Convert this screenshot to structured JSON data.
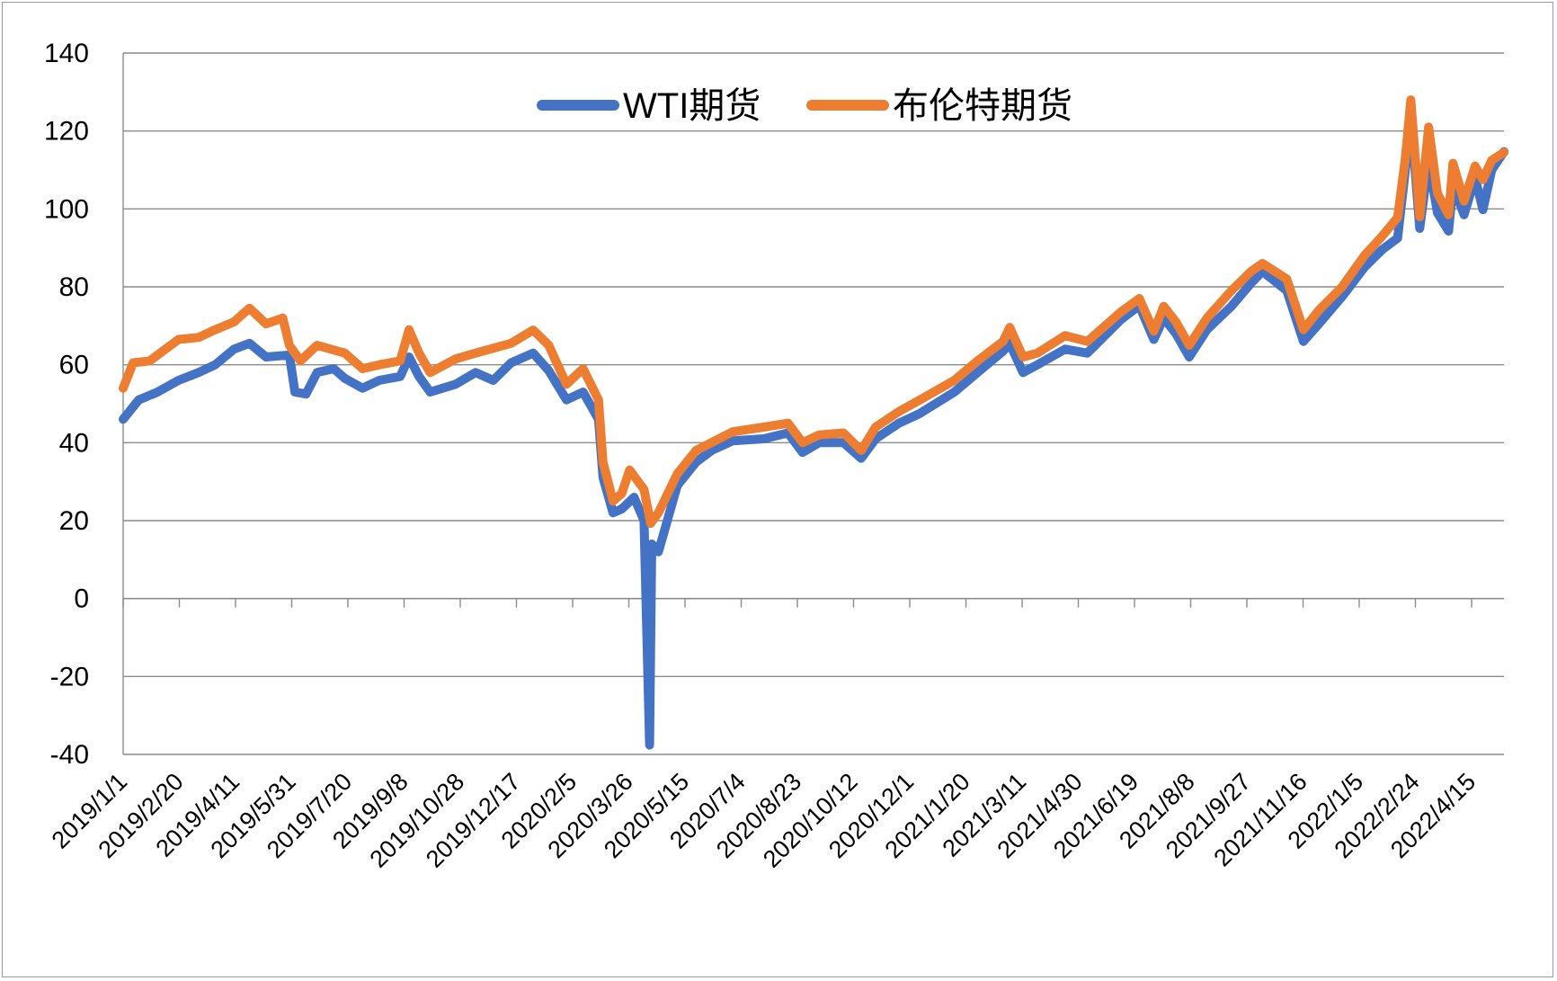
{
  "chart_data": {
    "type": "line",
    "title": "",
    "xlabel": "",
    "ylabel": "",
    "ylim": [
      -40,
      140
    ],
    "yticks": [
      -40,
      -20,
      0,
      20,
      40,
      60,
      80,
      100,
      120,
      140
    ],
    "grid": "horizontal",
    "legend_position": "top-center",
    "x_ticks": [
      "2019/1/1",
      "2019/2/20",
      "2019/4/11",
      "2019/5/31",
      "2019/7/20",
      "2019/9/8",
      "2019/10/28",
      "2019/12/17",
      "2020/2/5",
      "2020/3/26",
      "2020/5/15",
      "2020/7/4",
      "2020/8/23",
      "2020/10/12",
      "2020/12/1",
      "2021/1/20",
      "2021/3/11",
      "2021/4/30",
      "2021/6/19",
      "2021/8/8",
      "2021/9/27",
      "2021/11/16",
      "2022/1/5",
      "2022/2/24",
      "2022/4/15"
    ],
    "x_range": [
      "2019-01-01",
      "2022-05-31"
    ],
    "series": [
      {
        "name": "WTI期货",
        "color": "#4472C4",
        "points": [
          [
            "2019-01-01",
            46
          ],
          [
            "2019-01-15",
            51
          ],
          [
            "2019-02-01",
            53
          ],
          [
            "2019-02-20",
            56
          ],
          [
            "2019-03-10",
            58
          ],
          [
            "2019-03-25",
            60
          ],
          [
            "2019-04-11",
            64
          ],
          [
            "2019-04-25",
            65.5
          ],
          [
            "2019-05-10",
            62
          ],
          [
            "2019-05-31",
            62.5
          ],
          [
            "2019-06-05",
            53
          ],
          [
            "2019-06-15",
            52.5
          ],
          [
            "2019-06-25",
            58
          ],
          [
            "2019-07-10",
            59
          ],
          [
            "2019-07-20",
            56.5
          ],
          [
            "2019-08-05",
            54
          ],
          [
            "2019-08-20",
            56
          ],
          [
            "2019-09-08",
            57
          ],
          [
            "2019-09-16",
            62
          ],
          [
            "2019-09-25",
            57
          ],
          [
            "2019-10-05",
            53
          ],
          [
            "2019-10-28",
            55
          ],
          [
            "2019-11-15",
            58
          ],
          [
            "2019-12-01",
            56
          ],
          [
            "2019-12-17",
            60.5
          ],
          [
            "2020-01-06",
            63
          ],
          [
            "2020-01-20",
            58.5
          ],
          [
            "2020-02-05",
            51
          ],
          [
            "2020-02-20",
            53
          ],
          [
            "2020-03-05",
            46
          ],
          [
            "2020-03-09",
            31
          ],
          [
            "2020-03-18",
            22
          ],
          [
            "2020-03-26",
            23
          ],
          [
            "2020-04-06",
            26
          ],
          [
            "2020-04-15",
            20
          ],
          [
            "2020-04-20",
            -37.6
          ],
          [
            "2020-04-22",
            14
          ],
          [
            "2020-04-28",
            12
          ],
          [
            "2020-05-15",
            29
          ],
          [
            "2020-06-01",
            35
          ],
          [
            "2020-06-15",
            38
          ],
          [
            "2020-07-04",
            40.5
          ],
          [
            "2020-08-01",
            41
          ],
          [
            "2020-08-23",
            42.5
          ],
          [
            "2020-09-05",
            37.5
          ],
          [
            "2020-09-20",
            40
          ],
          [
            "2020-10-12",
            40
          ],
          [
            "2020-10-28",
            36
          ],
          [
            "2020-11-10",
            41
          ],
          [
            "2020-12-01",
            45
          ],
          [
            "2020-12-20",
            47.5
          ],
          [
            "2021-01-20",
            53
          ],
          [
            "2021-02-10",
            58
          ],
          [
            "2021-03-05",
            63.5
          ],
          [
            "2021-03-11",
            65.5
          ],
          [
            "2021-03-23",
            58
          ],
          [
            "2021-04-05",
            60
          ],
          [
            "2021-04-30",
            64
          ],
          [
            "2021-05-20",
            63
          ],
          [
            "2021-06-19",
            71.5
          ],
          [
            "2021-07-06",
            75.2
          ],
          [
            "2021-07-19",
            66.5
          ],
          [
            "2021-07-28",
            72
          ],
          [
            "2021-08-08",
            68
          ],
          [
            "2021-08-20",
            62
          ],
          [
            "2021-09-05",
            69
          ],
          [
            "2021-09-27",
            75
          ],
          [
            "2021-10-15",
            81
          ],
          [
            "2021-10-25",
            84
          ],
          [
            "2021-11-16",
            79
          ],
          [
            "2021-12-01",
            66
          ],
          [
            "2021-12-15",
            70.5
          ],
          [
            "2022-01-05",
            77.5
          ],
          [
            "2022-01-25",
            85
          ],
          [
            "2022-02-10",
            89.5
          ],
          [
            "2022-02-24",
            92.5
          ],
          [
            "2022-03-03",
            110
          ],
          [
            "2022-03-08",
            123.7
          ],
          [
            "2022-03-16",
            95
          ],
          [
            "2022-03-24",
            112.3
          ],
          [
            "2022-04-01",
            99
          ],
          [
            "2022-04-11",
            94.3
          ],
          [
            "2022-04-15",
            106
          ],
          [
            "2022-04-25",
            98.5
          ],
          [
            "2022-05-05",
            108
          ],
          [
            "2022-05-12",
            99.8
          ],
          [
            "2022-05-20",
            110
          ],
          [
            "2022-05-31",
            114.7
          ]
        ]
      },
      {
        "name": "布伦特期货",
        "color": "#ED7D31",
        "points": [
          [
            "2019-01-01",
            54
          ],
          [
            "2019-01-10",
            60.5
          ],
          [
            "2019-01-25",
            61
          ],
          [
            "2019-02-20",
            66.5
          ],
          [
            "2019-03-10",
            67
          ],
          [
            "2019-03-25",
            69
          ],
          [
            "2019-04-11",
            71
          ],
          [
            "2019-04-25",
            74.5
          ],
          [
            "2019-05-10",
            70.5
          ],
          [
            "2019-05-25",
            72
          ],
          [
            "2019-05-31",
            65
          ],
          [
            "2019-06-10",
            61
          ],
          [
            "2019-06-25",
            65
          ],
          [
            "2019-07-20",
            63
          ],
          [
            "2019-08-05",
            59
          ],
          [
            "2019-08-20",
            60
          ],
          [
            "2019-09-08",
            61
          ],
          [
            "2019-09-16",
            69
          ],
          [
            "2019-09-25",
            63
          ],
          [
            "2019-10-05",
            58
          ],
          [
            "2019-10-28",
            61.5
          ],
          [
            "2019-11-15",
            63
          ],
          [
            "2019-12-17",
            65.5
          ],
          [
            "2020-01-06",
            68.9
          ],
          [
            "2020-01-20",
            65
          ],
          [
            "2020-02-05",
            55
          ],
          [
            "2020-02-20",
            59
          ],
          [
            "2020-03-05",
            51
          ],
          [
            "2020-03-09",
            35
          ],
          [
            "2020-03-18",
            25
          ],
          [
            "2020-03-26",
            27
          ],
          [
            "2020-04-02",
            33
          ],
          [
            "2020-04-15",
            28
          ],
          [
            "2020-04-21",
            19.3
          ],
          [
            "2020-04-28",
            22
          ],
          [
            "2020-05-15",
            32
          ],
          [
            "2020-06-01",
            38
          ],
          [
            "2020-07-04",
            42.8
          ],
          [
            "2020-08-01",
            44
          ],
          [
            "2020-08-23",
            45
          ],
          [
            "2020-09-05",
            40
          ],
          [
            "2020-09-20",
            42
          ],
          [
            "2020-10-12",
            42.5
          ],
          [
            "2020-10-28",
            38
          ],
          [
            "2020-11-10",
            44
          ],
          [
            "2020-12-01",
            48
          ],
          [
            "2020-12-20",
            51
          ],
          [
            "2021-01-20",
            56
          ],
          [
            "2021-02-10",
            61
          ],
          [
            "2021-03-05",
            66
          ],
          [
            "2021-03-11",
            69.6
          ],
          [
            "2021-03-23",
            62
          ],
          [
            "2021-04-05",
            63
          ],
          [
            "2021-04-30",
            67.5
          ],
          [
            "2021-05-20",
            66
          ],
          [
            "2021-06-19",
            73.5
          ],
          [
            "2021-07-06",
            77
          ],
          [
            "2021-07-19",
            68.6
          ],
          [
            "2021-07-28",
            75
          ],
          [
            "2021-08-08",
            71
          ],
          [
            "2021-08-20",
            65
          ],
          [
            "2021-09-05",
            72
          ],
          [
            "2021-09-27",
            79
          ],
          [
            "2021-10-15",
            84
          ],
          [
            "2021-10-25",
            86
          ],
          [
            "2021-11-16",
            82
          ],
          [
            "2021-12-01",
            69
          ],
          [
            "2021-12-15",
            74
          ],
          [
            "2022-01-05",
            80
          ],
          [
            "2022-01-25",
            88
          ],
          [
            "2022-02-10",
            93
          ],
          [
            "2022-02-24",
            97.8
          ],
          [
            "2022-03-03",
            113
          ],
          [
            "2022-03-08",
            127.98
          ],
          [
            "2022-03-16",
            98
          ],
          [
            "2022-03-24",
            121
          ],
          [
            "2022-04-01",
            104
          ],
          [
            "2022-04-11",
            98.5
          ],
          [
            "2022-04-15",
            111.7
          ],
          [
            "2022-04-25",
            102
          ],
          [
            "2022-05-05",
            111
          ],
          [
            "2022-05-12",
            107.5
          ],
          [
            "2022-05-20",
            112.5
          ],
          [
            "2022-05-31",
            114.5
          ]
        ]
      }
    ]
  }
}
